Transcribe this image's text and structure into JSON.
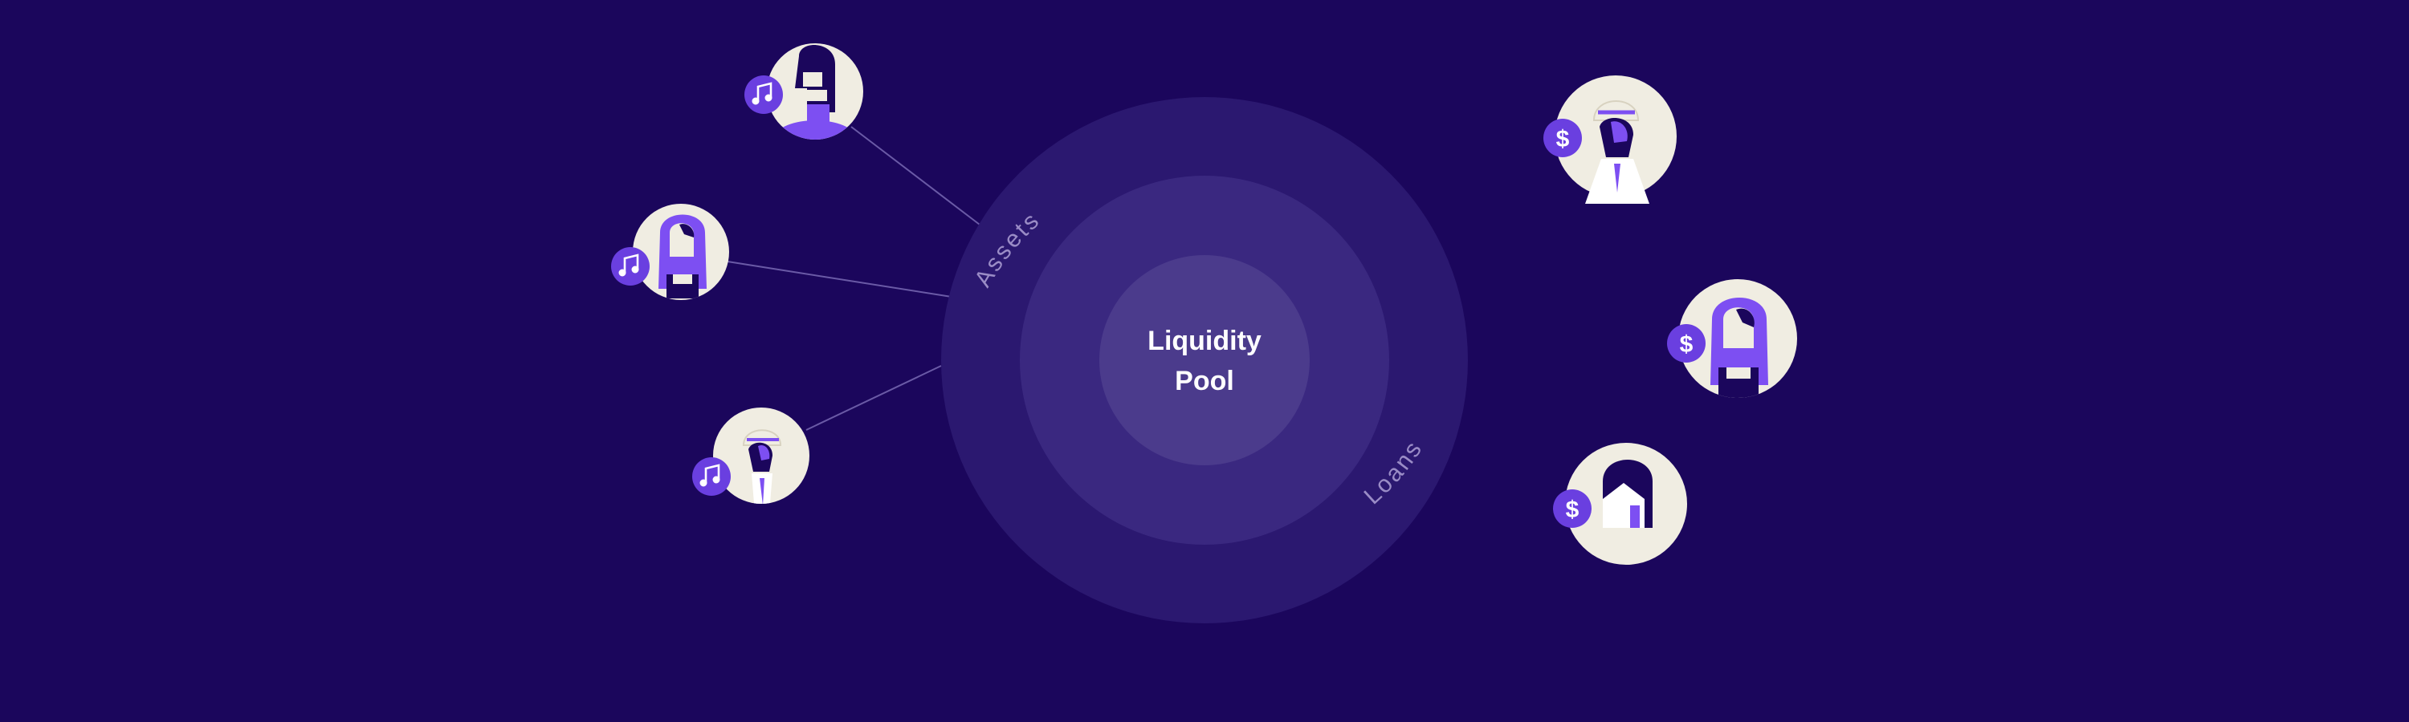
{
  "colors": {
    "background": "#1b065c",
    "ring_outer": "#2b1870",
    "ring_middle": "#3a2880",
    "ring_inner": "#4b3b8c",
    "avatar_cream": "#f0ede2",
    "accent_purple": "#7d4ff2",
    "badge_purple": "#6a3fe0",
    "dark_figure": "#1b065c",
    "connector_line": "#6a5aa6",
    "ring_label": "#9a8cc6",
    "center_label": "#ffffff"
  },
  "pool": {
    "title_line1": "Liquidity",
    "title_line2": "Pool",
    "ring_label_assets": "Assets",
    "ring_label_loans": "Loans"
  },
  "participants": {
    "asset_holders": [
      {
        "name": "asset-holder-top",
        "badge_icon": "music-note-icon",
        "figure": "man-side-profile"
      },
      {
        "name": "asset-holder-middle",
        "badge_icon": "music-note-icon",
        "figure": "woman-long-hair"
      },
      {
        "name": "asset-holder-bottom",
        "badge_icon": "music-note-icon",
        "figure": "woman-with-cap"
      }
    ],
    "borrowers": [
      {
        "name": "borrower-top",
        "badge_icon": "dollar-icon",
        "badge_text": "$",
        "figure": "woman-with-cap"
      },
      {
        "name": "borrower-middle",
        "badge_icon": "dollar-icon",
        "badge_text": "$",
        "figure": "woman-long-hair"
      },
      {
        "name": "borrower-bottom",
        "badge_icon": "dollar-icon",
        "badge_text": "$",
        "figure": "house"
      }
    ]
  }
}
